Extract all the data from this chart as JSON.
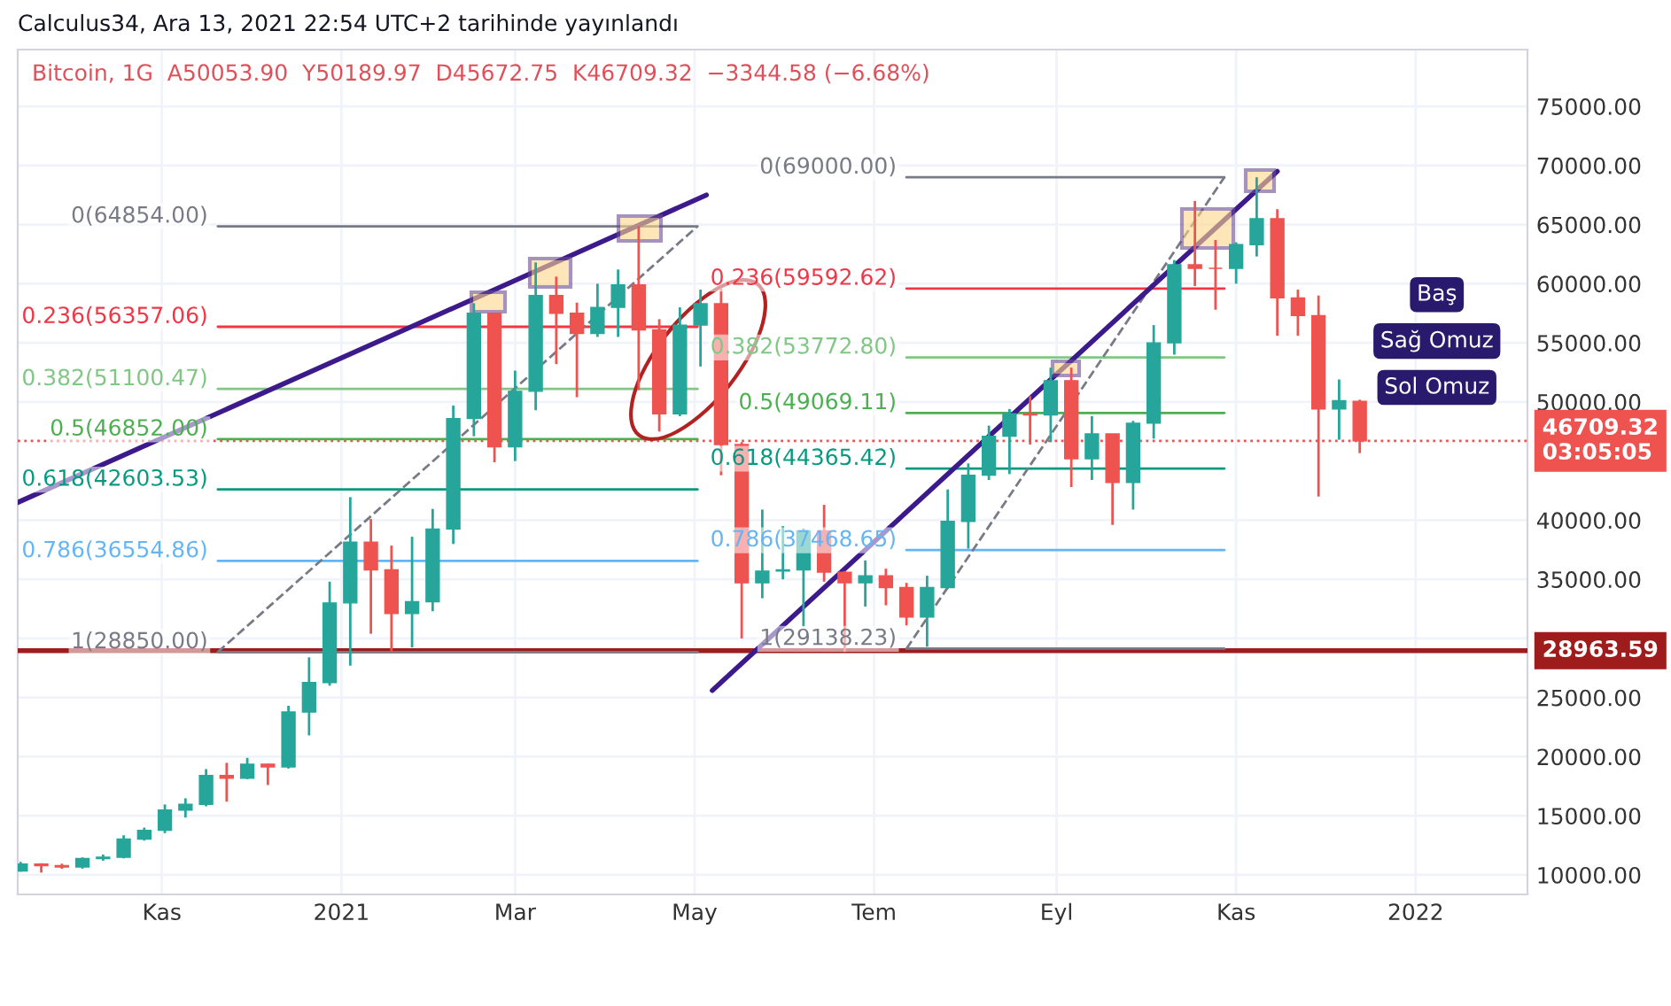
{
  "chart_data": {
    "type": "candlestick",
    "title": "Calculus34, Ara 13, 2021 22:54 UTC+2 tarihinde yayınlandı",
    "subtitle": "Bitcoin, 1G  A50053.90  Y50189.97  D45672.75  K46709.32  −3344.58 (−6.68%)",
    "x": [
      "2020-09-14",
      "2020-09-21",
      "2020-09-28",
      "2020-10-05",
      "2020-10-12",
      "2020-10-19",
      "2020-10-26",
      "2020-11-02",
      "2020-11-09",
      "2020-11-16",
      "2020-11-23",
      "2020-11-30",
      "2020-12-07",
      "2020-12-14",
      "2020-12-21",
      "2020-12-28",
      "2021-01-04",
      "2021-01-11",
      "2021-01-18",
      "2021-01-25",
      "2021-02-01",
      "2021-02-08",
      "2021-02-15",
      "2021-02-22",
      "2021-03-01",
      "2021-03-08",
      "2021-03-15",
      "2021-03-22",
      "2021-03-29",
      "2021-04-05",
      "2021-04-12",
      "2021-04-19",
      "2021-04-26",
      "2021-05-03",
      "2021-05-10",
      "2021-05-17",
      "2021-05-24",
      "2021-05-31",
      "2021-06-07",
      "2021-06-14",
      "2021-06-21",
      "2021-06-28",
      "2021-07-05",
      "2021-07-12",
      "2021-07-19",
      "2021-07-26",
      "2021-08-02",
      "2021-08-09",
      "2021-08-16",
      "2021-08-23",
      "2021-08-30",
      "2021-09-06",
      "2021-09-13",
      "2021-09-20",
      "2021-09-27",
      "2021-10-04",
      "2021-10-11",
      "2021-10-18",
      "2021-10-25",
      "2021-11-01",
      "2021-11-08",
      "2021-11-15",
      "2021-11-22",
      "2021-11-29",
      "2021-12-06",
      "2021-12-13"
    ],
    "ohlc": [
      [
        10330,
        11100,
        10270,
        10920
      ],
      [
        10920,
        10990,
        10200,
        10780
      ],
      [
        10780,
        10950,
        10520,
        10670
      ],
      [
        10670,
        11480,
        10530,
        11380
      ],
      [
        11380,
        11720,
        11200,
        11500
      ],
      [
        11500,
        13350,
        11400,
        13030
      ],
      [
        13030,
        14000,
        12900,
        13770
      ],
      [
        13770,
        15960,
        13530,
        15480
      ],
      [
        15480,
        16480,
        14850,
        15970
      ],
      [
        15970,
        18950,
        15800,
        18400
      ],
      [
        18400,
        19480,
        16200,
        18170
      ],
      [
        18170,
        19900,
        18100,
        19360
      ],
      [
        19360,
        19400,
        17600,
        19140
      ],
      [
        19140,
        24300,
        19000,
        23780
      ],
      [
        23780,
        28400,
        21800,
        26270
      ],
      [
        26270,
        34800,
        26000,
        33000
      ],
      [
        33000,
        41950,
        27700,
        38150
      ],
      [
        38150,
        40100,
        30400,
        35800
      ],
      [
        35800,
        37850,
        28850,
        32100
      ],
      [
        32100,
        38600,
        29240,
        33100
      ],
      [
        33100,
        40950,
        32300,
        39250
      ],
      [
        39250,
        49700,
        37990,
        48600
      ],
      [
        48600,
        58350,
        47100,
        57500
      ],
      [
        57500,
        57500,
        44900,
        46200
      ],
      [
        46200,
        52650,
        45000,
        50900
      ],
      [
        50900,
        61800,
        49300,
        59000
      ],
      [
        59000,
        60600,
        53200,
        57500
      ],
      [
        57500,
        58400,
        50400,
        55800
      ],
      [
        55800,
        60000,
        55500,
        58000
      ],
      [
        58000,
        61200,
        55500,
        59900
      ],
      [
        59900,
        64854,
        51000,
        56100
      ],
      [
        56100,
        57000,
        47500,
        49000
      ],
      [
        49000,
        58000,
        48800,
        56500
      ],
      [
        56500,
        59500,
        53000,
        58300
      ],
      [
        58300,
        59600,
        43800,
        46400
      ],
      [
        46400,
        46600,
        30000,
        34700
      ],
      [
        34700,
        40900,
        33400,
        35700
      ],
      [
        35700,
        39500,
        35000,
        35800
      ],
      [
        35800,
        39300,
        31000,
        39100
      ],
      [
        39100,
        41300,
        34800,
        35600
      ],
      [
        35600,
        35700,
        28850,
        34700
      ],
      [
        34700,
        36600,
        32700,
        35300
      ],
      [
        35300,
        35900,
        32800,
        34300
      ],
      [
        34300,
        34700,
        31100,
        31800
      ],
      [
        31800,
        35300,
        29300,
        34300
      ],
      [
        34300,
        42600,
        34200,
        39900
      ],
      [
        39900,
        44800,
        37600,
        43800
      ],
      [
        43800,
        48000,
        43400,
        47100
      ],
      [
        47100,
        49400,
        43900,
        49000
      ],
      [
        49000,
        50500,
        46400,
        48900
      ],
      [
        48900,
        52900,
        46600,
        51800
      ],
      [
        51800,
        52900,
        42800,
        45200
      ],
      [
        45200,
        48800,
        43400,
        47300
      ],
      [
        47300,
        47300,
        39600,
        43200
      ],
      [
        43200,
        48400,
        40900,
        48200
      ],
      [
        48200,
        56500,
        46900,
        55000
      ],
      [
        55000,
        62000,
        54000,
        61600
      ],
      [
        61600,
        67000,
        59800,
        61300
      ],
      [
        61300,
        63700,
        57800,
        61300
      ],
      [
        61300,
        63500,
        60000,
        63300
      ],
      [
        63300,
        69000,
        62300,
        65500
      ],
      [
        65500,
        66300,
        55600,
        58800
      ],
      [
        58800,
        59500,
        55600,
        57300
      ],
      [
        57300,
        59000,
        42000,
        49400
      ],
      [
        49400,
        51900,
        46800,
        50100
      ],
      [
        50053.9,
        50189.97,
        45672.75,
        46709.32
      ]
    ],
    "colors": [
      "#26a69a",
      "#ef5350",
      "#ef5350",
      "#26a69a",
      "#26a69a",
      "#26a69a",
      "#26a69a",
      "#26a69a",
      "#26a69a",
      "#26a69a",
      "#ef5350",
      "#26a69a",
      "#ef5350",
      "#26a69a",
      "#26a69a",
      "#26a69a",
      "#26a69a",
      "#ef5350",
      "#ef5350",
      "#26a69a",
      "#26a69a",
      "#26a69a",
      "#26a69a",
      "#ef5350",
      "#26a69a",
      "#26a69a",
      "#ef5350",
      "#ef5350",
      "#26a69a",
      "#26a69a",
      "#ef5350",
      "#ef5350",
      "#26a69a",
      "#26a69a",
      "#ef5350",
      "#ef5350",
      "#26a69a",
      "#26a69a",
      "#26a69a",
      "#ef5350",
      "#ef5350",
      "#26a69a",
      "#ef5350",
      "#ef5350",
      "#26a69a",
      "#26a69a",
      "#26a69a",
      "#26a69a",
      "#26a69a",
      "#ef5350",
      "#26a69a",
      "#ef5350",
      "#26a69a",
      "#ef5350",
      "#26a69a",
      "#26a69a",
      "#26a69a",
      "#ef5350",
      "#ef5350",
      "#26a69a",
      "#26a69a",
      "#ef5350",
      "#ef5350",
      "#ef5350",
      "#26a69a",
      "#ef5350"
    ],
    "series": [
      {
        "type": "line",
        "color": "#787b86",
        "x": [
          "2020-11-20",
          "2021-05-02"
        ],
        "values": [
          64854,
          64854
        ]
      },
      {
        "type": "line",
        "color": "#f23645",
        "x": [
          "2020-11-20",
          "2021-05-02"
        ],
        "values": [
          56357.06,
          56357.06
        ]
      },
      {
        "type": "line",
        "color": "#81c784",
        "x": [
          "2020-11-20",
          "2021-05-02"
        ],
        "values": [
          51100.47,
          51100.47
        ]
      },
      {
        "type": "line",
        "color": "#4caf50",
        "x": [
          "2020-11-20",
          "2021-05-02"
        ],
        "values": [
          46852,
          46852
        ]
      },
      {
        "type": "line",
        "color": "#089981",
        "x": [
          "2020-11-20",
          "2021-05-02"
        ],
        "values": [
          42603.53,
          42603.53
        ]
      },
      {
        "type": "line",
        "color": "#64b5f6",
        "x": [
          "2020-11-20",
          "2021-05-02"
        ],
        "values": [
          36554.86,
          36554.86
        ]
      },
      {
        "type": "line",
        "color": "#787b86",
        "x": [
          "2020-11-20",
          "2021-05-02"
        ],
        "values": [
          28850,
          28850
        ]
      },
      {
        "type": "line",
        "color": "#787b86",
        "line_style": "dashed",
        "x": [
          "2020-11-20",
          "2021-05-02"
        ],
        "values": [
          28850,
          64854
        ]
      },
      {
        "type": "line",
        "color": "#787b86",
        "x": [
          "2021-07-12",
          "2021-10-28"
        ],
        "values": [
          69000,
          69000
        ]
      },
      {
        "type": "line",
        "color": "#f23645",
        "x": [
          "2021-07-12",
          "2021-10-28"
        ],
        "values": [
          59592.62,
          59592.62
        ]
      },
      {
        "type": "line",
        "color": "#81c784",
        "x": [
          "2021-07-12",
          "2021-10-28"
        ],
        "values": [
          53772.8,
          53772.8
        ]
      },
      {
        "type": "line",
        "color": "#4caf50",
        "x": [
          "2021-07-12",
          "2021-10-28"
        ],
        "values": [
          49069.11,
          49069.11
        ]
      },
      {
        "type": "line",
        "color": "#089981",
        "x": [
          "2021-07-12",
          "2021-10-28"
        ],
        "values": [
          44365.42,
          44365.42
        ]
      },
      {
        "type": "line",
        "color": "#64b5f6",
        "x": [
          "2021-07-12",
          "2021-10-28"
        ],
        "values": [
          37468.65,
          37468.65
        ]
      },
      {
        "type": "line",
        "color": "#787b86",
        "x": [
          "2021-07-12",
          "2021-10-28"
        ],
        "values": [
          29138.23,
          29138.23
        ]
      },
      {
        "type": "line",
        "color": "#787b86",
        "line_style": "dashed",
        "x": [
          "2021-07-12",
          "2021-10-28"
        ],
        "values": [
          29138.23,
          69000
        ]
      },
      {
        "type": "line",
        "color": "#3c1a8c",
        "x": [
          "2020-09-13",
          "2021-05-05"
        ],
        "values": [
          41500,
          67500
        ]
      },
      {
        "type": "line",
        "color": "#3c1a8c",
        "x": [
          "2021-05-07",
          "2021-11-15"
        ],
        "values": [
          25600,
          69500
        ]
      }
    ],
    "annotations": [
      {
        "text": "0(64854.00)",
        "x": "2020-11-20",
        "y": 64854
      },
      {
        "text": "0.236(56357.06)",
        "x": "2020-11-20",
        "y": 56357.06
      },
      {
        "text": "0.382(51100.47)",
        "x": "2020-11-20",
        "y": 51100.47
      },
      {
        "text": "0.5(46852.00)",
        "x": "2020-11-20",
        "y": 46852
      },
      {
        "text": "0.618(42603.53)",
        "x": "2020-11-20",
        "y": 42603.53
      },
      {
        "text": "0.786(36554.86)",
        "x": "2020-11-20",
        "y": 36554.86
      },
      {
        "text": "1(28850.00)",
        "x": "2020-11-20",
        "y": 28850
      },
      {
        "text": "0(69000.00)",
        "x": "2021-07-12",
        "y": 69000
      },
      {
        "text": "0.236(59592.62)",
        "x": "2021-07-12",
        "y": 59592.62
      },
      {
        "text": "0.382(53772.80)",
        "x": "2021-07-12",
        "y": 53772.8
      },
      {
        "text": "0.5(49069.11)",
        "x": "2021-07-12",
        "y": 49069.11
      },
      {
        "text": "0.618(44365.42)",
        "x": "2021-07-12",
        "y": 44365.42
      },
      {
        "text": "0.786(37468.65)",
        "x": "2021-07-12",
        "y": 37468.65
      },
      {
        "text": "1(29138.23)",
        "x": "2021-07-12",
        "y": 29138.23
      },
      "Baş",
      "Sağ Omuz",
      "Sol Omuz"
    ],
    "ref_lines": [
      {
        "axis": "y",
        "value": 28963.59,
        "label": "28963.59",
        "color": "#9e1c1c",
        "line_style": "solid"
      },
      {
        "axis": "y",
        "value": 46709.32,
        "label": "46709.32\n03:05:05",
        "color": "#ef5350",
        "line_style": "dotted"
      }
    ],
    "xlim": [
      "2020-09-13",
      "2022-02-08"
    ],
    "xticks": [
      {
        "value": "2020-11-01",
        "label": "Kas"
      },
      {
        "value": "2021-01-01",
        "label": "2021"
      },
      {
        "value": "2021-03-01",
        "label": "Mar"
      },
      {
        "value": "2021-05-01",
        "label": "May"
      },
      {
        "value": "2021-07-01",
        "label": "Tem"
      },
      {
        "value": "2021-09-01",
        "label": "Eyl"
      },
      {
        "value": "2021-11-01",
        "label": "Kas"
      },
      {
        "value": "2022-01-01",
        "label": "2022"
      }
    ],
    "ylim": [
      8350,
      79800
    ],
    "yticks": [
      {
        "value": 10000,
        "label": "10000.00"
      },
      {
        "value": 15000,
        "label": "15000.00"
      },
      {
        "value": 20000,
        "label": "20000.00"
      },
      {
        "value": 25000,
        "label": "25000.00"
      },
      {
        "value": 30000,
        "label": null
      },
      {
        "value": 35000,
        "label": "35000.00"
      },
      {
        "value": 40000,
        "label": "40000.00"
      },
      {
        "value": 50000,
        "label": "50000.00"
      },
      {
        "value": 55000,
        "label": "55000.00"
      },
      {
        "value": 60000,
        "label": "60000.00"
      },
      {
        "value": 65000,
        "label": "65000.00"
      },
      {
        "value": 70000,
        "label": "70000.00"
      },
      {
        "value": 75000,
        "label": "75000.00"
      }
    ],
    "grid": true
  }
}
